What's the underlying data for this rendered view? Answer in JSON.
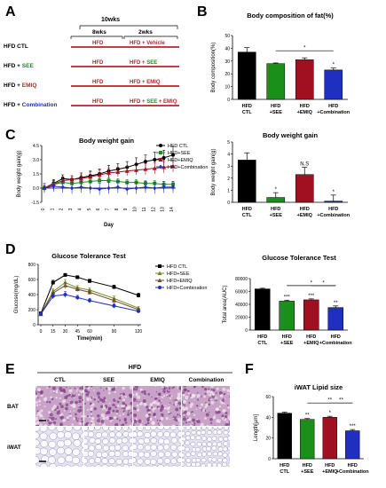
{
  "panels": {
    "A": {
      "letter": "A",
      "duration_total": "10wks",
      "duration_hfd": "8wks",
      "duration_treat": "2wks",
      "rows": [
        {
          "group_prefix": "HFD CTL",
          "group_suffix": "",
          "suffix_color": "#000000",
          "hfd": "HFD",
          "treat": "HFD + Vehicle"
        },
        {
          "group_prefix": "HFD + ",
          "group_suffix": "SEE",
          "suffix_color": "#1a8f1a",
          "hfd": "HFD",
          "treat": "HFD + SEE"
        },
        {
          "group_prefix": "HFD + ",
          "group_suffix": "EMIQ",
          "suffix_color": "#c0202a",
          "hfd": "HFD",
          "treat": "HFD + EMIQ"
        },
        {
          "group_prefix": "HFD + ",
          "group_suffix": "Combination",
          "suffix_color": "#1f2fbf",
          "hfd": "HFD",
          "treat": "HFD + SEE + EMIQ"
        }
      ]
    },
    "B": {
      "letter": "B",
      "chart_data": {
        "type": "bar",
        "title": "Body composition of fat(%)",
        "ylabel": "Body composition(%)",
        "categories": [
          "HFD\nCTL",
          "HFD\n+SEE",
          "HFD\n+EMIQ",
          "HFD\n+Combination"
        ],
        "values": [
          37,
          28,
          31,
          23
        ],
        "errors": [
          3.5,
          0.5,
          1.5,
          1.5
        ],
        "colors": [
          "#000000",
          "#1a8f1a",
          "#a01020",
          "#1f2fbf"
        ],
        "ylim": [
          0,
          50
        ],
        "yticks": [
          "0",
          "10",
          "20",
          "30",
          "40",
          "50"
        ],
        "annotations": [
          {
            "index": 3,
            "text": "*"
          }
        ],
        "bracket": {
          "from": 1,
          "to": 3,
          "text": "*"
        }
      }
    },
    "C_line": {
      "letter": "C",
      "chart_data": {
        "type": "line",
        "title": "Body weight gain",
        "ylabel": "Body weight gain(g)",
        "xlabel": "Day",
        "x": [
          0,
          1,
          2,
          3,
          4,
          5,
          6,
          7,
          8,
          9,
          10,
          11,
          12,
          13,
          14
        ],
        "ylim": [
          -1.5,
          4.5
        ],
        "yticks": [
          "-1.5",
          "0.0",
          "1.5",
          "3.0",
          "4.5"
        ],
        "series": [
          {
            "name": "HFD CTL",
            "color": "#000000",
            "marker": "circle",
            "values": [
              0,
              0.5,
              1.0,
              0.9,
              1.1,
              1.3,
              1.5,
              1.8,
              2.0,
              2.2,
              2.5,
              2.8,
              3.0,
              3.2,
              3.5
            ],
            "errors": [
              0.3,
              0.4,
              0.4,
              0.4,
              0.5,
              0.5,
              0.5,
              0.6,
              0.6,
              0.6,
              0.7,
              0.7,
              0.8,
              0.8,
              0.9
            ]
          },
          {
            "name": "HFD+SEE",
            "color": "#1a8f1a",
            "marker": "square",
            "values": [
              0,
              0.4,
              0.6,
              0.5,
              0.6,
              0.7,
              0.8,
              0.8,
              0.7,
              0.6,
              0.6,
              0.5,
              0.5,
              0.4,
              0.4
            ],
            "errors": [
              0.2,
              0.3,
              0.3,
              0.3,
              0.3,
              0.3,
              0.3,
              0.3,
              0.3,
              0.3,
              0.3,
              0.3,
              0.3,
              0.3,
              0.3
            ]
          },
          {
            "name": "HFD+EMIQ",
            "color": "#a01020",
            "marker": "triangle",
            "values": [
              0,
              0.4,
              0.8,
              0.9,
              1.0,
              1.2,
              1.4,
              1.6,
              1.7,
              1.8,
              1.9,
              2.0,
              2.1,
              2.2,
              2.3
            ],
            "errors": [
              0.3,
              0.4,
              0.4,
              0.4,
              0.4,
              0.5,
              0.5,
              0.5,
              0.5,
              0.5,
              0.5,
              0.6,
              0.6,
              0.6,
              0.6
            ]
          },
          {
            "name": "HFD+Combination",
            "color": "#1f2fbf",
            "marker": "diamond",
            "values": [
              0,
              0.2,
              0.1,
              0.0,
              0.1,
              0.0,
              -0.1,
              0.0,
              0.1,
              -0.1,
              0.0,
              0.1,
              0.0,
              0.1,
              0.1
            ],
            "errors": [
              0.5,
              0.6,
              0.6,
              0.6,
              0.6,
              0.6,
              0.6,
              0.6,
              0.6,
              0.6,
              0.6,
              0.6,
              0.6,
              0.6,
              0.6
            ]
          }
        ]
      }
    },
    "C_bar": {
      "chart_data": {
        "type": "bar",
        "title": "Body weight gain",
        "ylabel": "Body weight gain(g)",
        "categories": [
          "HFD\nCTL",
          "HFD\n+SEE",
          "HFD\n+EMIQ",
          "HFD\n+Combination"
        ],
        "values": [
          3.5,
          0.4,
          2.3,
          0.1
        ],
        "errors": [
          0.6,
          0.4,
          0.6,
          0.5
        ],
        "colors": [
          "#000000",
          "#1a8f1a",
          "#a01020",
          "#1f2fbf"
        ],
        "ylim": [
          0,
          5
        ],
        "yticks": [
          "0",
          "1",
          "2",
          "3",
          "4",
          "5"
        ],
        "annotations": [
          {
            "index": 1,
            "text": "*"
          },
          {
            "index": 2,
            "text": "N.S"
          },
          {
            "index": 3,
            "text": "*"
          }
        ]
      }
    },
    "D_line": {
      "letter": "D",
      "chart_data": {
        "type": "line",
        "title": "Glucose Tolerance Test",
        "ylabel": "Glucose(mg/dL)",
        "xlabel": "Time(min)",
        "x": [
          0,
          15,
          30,
          45,
          60,
          90,
          120
        ],
        "xticks": [
          "0",
          "15",
          "30",
          "45",
          "60",
          "90",
          "120"
        ],
        "ylim": [
          0,
          800
        ],
        "yticks": [
          "0",
          "200",
          "400",
          "600",
          "800"
        ],
        "series": [
          {
            "name": "HFD CTL",
            "color": "#000000",
            "marker": "square",
            "values": [
              150,
              560,
              660,
              630,
              580,
              500,
              390
            ],
            "errors": [
              20,
              30,
              20,
              20,
              25,
              25,
              30
            ]
          },
          {
            "name": "HFD+SEE",
            "color": "#6b8e23",
            "marker": "triangle",
            "values": [
              140,
              440,
              560,
              490,
              460,
              350,
              220
            ],
            "errors": [
              20,
              40,
              40,
              30,
              30,
              30,
              20
            ]
          },
          {
            "name": "HFD+EMIQ",
            "color": "#7a4a2a",
            "marker": "triangle",
            "values": [
              140,
              420,
              520,
              470,
              430,
              320,
              200
            ],
            "errors": [
              20,
              40,
              40,
              30,
              30,
              30,
              20
            ]
          },
          {
            "name": "HFD+Combination",
            "color": "#1f2fbf",
            "marker": "circle",
            "values": [
              140,
              380,
              400,
              360,
              320,
              250,
              180
            ],
            "errors": [
              20,
              40,
              40,
              30,
              30,
              30,
              20
            ]
          }
        ]
      }
    },
    "D_bar": {
      "chart_data": {
        "type": "bar",
        "title": "Glucose Tolerance Test",
        "ylabel": "Total area(AUC)",
        "categories": [
          "HFD\nCTL",
          "HFD\n+SEE",
          "HFD\n+EMIQ",
          "HFD\n+Combination"
        ],
        "values": [
          64000,
          45000,
          47000,
          35000
        ],
        "errors": [
          1000,
          1500,
          1500,
          2500
        ],
        "colors": [
          "#000000",
          "#1a8f1a",
          "#a01020",
          "#1f2fbf"
        ],
        "ylim": [
          0,
          80000
        ],
        "yticks": [
          "0",
          "20000",
          "40000",
          "60000",
          "80000"
        ],
        "annotations": [
          {
            "index": 1,
            "text": "***"
          },
          {
            "index": 2,
            "text": "***"
          },
          {
            "index": 3,
            "text": "**"
          }
        ],
        "brackets": [
          {
            "from": 1,
            "to": 3,
            "text": "*"
          },
          {
            "from": 2,
            "to": 3,
            "text": "*"
          }
        ]
      }
    },
    "E": {
      "letter": "E",
      "group_title": "HFD",
      "columns": [
        "CTL",
        "SEE",
        "EMIQ",
        "Combination"
      ],
      "rows": [
        "BAT",
        "iWAT"
      ]
    },
    "F": {
      "letter": "F",
      "chart_data": {
        "type": "bar",
        "title": "iWAT Lipid size",
        "ylabel": "Length[μm]",
        "categories": [
          "HFD\nCTL",
          "HFD\n+SEE",
          "HFD\n+EMIQ",
          "HFD\n+Combination"
        ],
        "values": [
          44,
          38,
          40,
          27
        ],
        "errors": [
          1.0,
          0.8,
          1.0,
          1.2
        ],
        "colors": [
          "#000000",
          "#1a8f1a",
          "#a01020",
          "#1f2fbf"
        ],
        "ylim": [
          0,
          60
        ],
        "yticks": [
          "0",
          "20",
          "40",
          "60"
        ],
        "annotations": [
          {
            "index": 1,
            "text": "**"
          },
          {
            "index": 2,
            "text": "*"
          },
          {
            "index": 3,
            "text": "***"
          }
        ],
        "brackets": [
          {
            "from": 1,
            "to": 3,
            "text": "**"
          },
          {
            "from": 2,
            "to": 3,
            "text": "**"
          }
        ]
      }
    }
  }
}
